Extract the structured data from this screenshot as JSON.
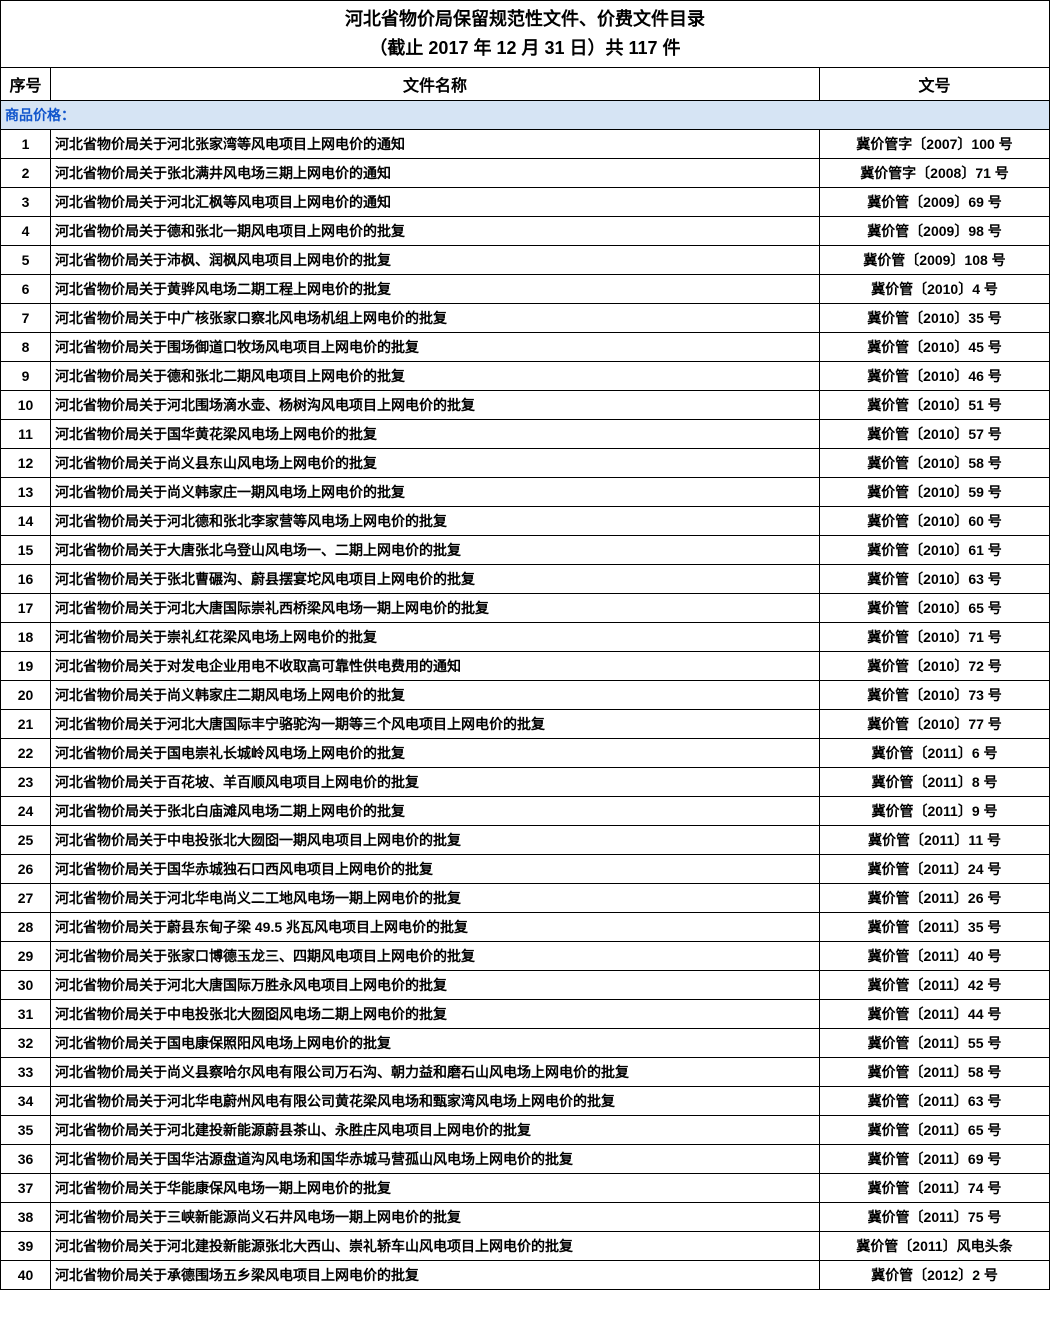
{
  "title_line1": "河北省物价局保留规范性文件、价费文件目录",
  "title_line2": "（截止 2017 年 12 月 31 日）共 117 件",
  "headers": {
    "seq": "序号",
    "name": "文件名称",
    "docno": "文号"
  },
  "section_label": "商品价格：",
  "colors": {
    "border": "#000000",
    "section_bg": "#d6e4f4",
    "section_fg": "#1155cc",
    "bg": "#ffffff",
    "text": "#000000"
  },
  "rows": [
    {
      "seq": "1",
      "name": "河北省物价局关于河北张家湾等风电项目上网电价的通知",
      "docno": "冀价管字〔2007〕100 号"
    },
    {
      "seq": "2",
      "name": "河北省物价局关于张北满井风电场三期上网电价的通知",
      "docno": "冀价管字〔2008〕71 号"
    },
    {
      "seq": "3",
      "name": "河北省物价局关于河北汇枫等风电项目上网电价的通知",
      "docno": "冀价管〔2009〕69 号"
    },
    {
      "seq": "4",
      "name": "河北省物价局关于德和张北一期风电项目上网电价的批复",
      "docno": "冀价管〔2009〕98 号"
    },
    {
      "seq": "5",
      "name": "河北省物价局关于沛枫、润枫风电项目上网电价的批复",
      "docno": "冀价管〔2009〕108 号"
    },
    {
      "seq": "6",
      "name": "河北省物价局关于黄骅风电场二期工程上网电价的批复",
      "docno": "冀价管〔2010〕4 号"
    },
    {
      "seq": "7",
      "name": "河北省物价局关于中广核张家口察北风电场机组上网电价的批复",
      "docno": "冀价管〔2010〕35 号"
    },
    {
      "seq": "8",
      "name": "河北省物价局关于围场御道口牧场风电项目上网电价的批复",
      "docno": "冀价管〔2010〕45 号"
    },
    {
      "seq": "9",
      "name": "河北省物价局关于德和张北二期风电项目上网电价的批复",
      "docno": "冀价管〔2010〕46 号"
    },
    {
      "seq": "10",
      "name": "河北省物价局关于河北围场滴水壶、杨树沟风电项目上网电价的批复",
      "docno": "冀价管〔2010〕51 号"
    },
    {
      "seq": "11",
      "name": "河北省物价局关于国华黄花梁风电场上网电价的批复",
      "docno": "冀价管〔2010〕57 号"
    },
    {
      "seq": "12",
      "name": "河北省物价局关于尚义县东山风电场上网电价的批复",
      "docno": "冀价管〔2010〕58 号"
    },
    {
      "seq": "13",
      "name": "河北省物价局关于尚义韩家庄一期风电场上网电价的批复",
      "docno": "冀价管〔2010〕59 号"
    },
    {
      "seq": "14",
      "name": "河北省物价局关于河北德和张北李家营等风电场上网电价的批复",
      "docno": "冀价管〔2010〕60 号"
    },
    {
      "seq": "15",
      "name": "河北省物价局关于大唐张北乌登山风电场一、二期上网电价的批复",
      "docno": "冀价管〔2010〕61 号"
    },
    {
      "seq": "16",
      "name": "河北省物价局关于张北曹碾沟、蔚县摆宴坨风电项目上网电价的批复",
      "docno": "冀价管〔2010〕63 号"
    },
    {
      "seq": "17",
      "name": "河北省物价局关于河北大唐国际崇礼西桥梁风电场一期上网电价的批复",
      "docno": "冀价管〔2010〕65 号"
    },
    {
      "seq": "18",
      "name": "河北省物价局关于崇礼红花梁风电场上网电价的批复",
      "docno": "冀价管〔2010〕71 号"
    },
    {
      "seq": "19",
      "name": "河北省物价局关于对发电企业用电不收取高可靠性供电费用的通知",
      "docno": "冀价管〔2010〕72 号"
    },
    {
      "seq": "20",
      "name": "河北省物价局关于尚义韩家庄二期风电场上网电价的批复",
      "docno": "冀价管〔2010〕73 号"
    },
    {
      "seq": "21",
      "name": "河北省物价局关于河北大唐国际丰宁骆驼沟一期等三个风电项目上网电价的批复",
      "docno": "冀价管〔2010〕77 号"
    },
    {
      "seq": "22",
      "name": "河北省物价局关于国电崇礼长城岭风电场上网电价的批复",
      "docno": "冀价管〔2011〕6 号"
    },
    {
      "seq": "23",
      "name": "河北省物价局关于百花坡、羊百顺风电项目上网电价的批复",
      "docno": "冀价管〔2011〕8 号"
    },
    {
      "seq": "24",
      "name": "河北省物价局关于张北白庙滩风电场二期上网电价的批复",
      "docno": "冀价管〔2011〕9 号"
    },
    {
      "seq": "25",
      "name": "河北省物价局关于中电投张北大囫囵一期风电项目上网电价的批复",
      "docno": "冀价管〔2011〕11 号"
    },
    {
      "seq": "26",
      "name": "河北省物价局关于国华赤城独石口西风电项目上网电价的批复",
      "docno": "冀价管〔2011〕24 号"
    },
    {
      "seq": "27",
      "name": "河北省物价局关于河北华电尚义二工地风电场一期上网电价的批复",
      "docno": "冀价管〔2011〕26 号"
    },
    {
      "seq": "28",
      "name": "河北省物价局关于蔚县东甸子梁 49.5 兆瓦风电项目上网电价的批复",
      "docno": "冀价管〔2011〕35 号"
    },
    {
      "seq": "29",
      "name": "河北省物价局关于张家口博德玉龙三、四期风电项目上网电价的批复",
      "docno": "冀价管〔2011〕40 号"
    },
    {
      "seq": "30",
      "name": "河北省物价局关于河北大唐国际万胜永风电项目上网电价的批复",
      "docno": "冀价管〔2011〕42 号"
    },
    {
      "seq": "31",
      "name": "河北省物价局关于中电投张北大囫囵风电场二期上网电价的批复",
      "docno": "冀价管〔2011〕44 号"
    },
    {
      "seq": "32",
      "name": "河北省物价局关于国电康保照阳风电场上网电价的批复",
      "docno": "冀价管〔2011〕55 号"
    },
    {
      "seq": "33",
      "name": "河北省物价局关于尚义县察哈尔风电有限公司万石沟、朝力益和磨石山风电场上网电价的批复",
      "docno": "冀价管〔2011〕58 号"
    },
    {
      "seq": "34",
      "name": "河北省物价局关于河北华电蔚州风电有限公司黄花梁风电场和甄家湾风电场上网电价的批复",
      "docno": "冀价管〔2011〕63 号"
    },
    {
      "seq": "35",
      "name": "河北省物价局关于河北建投新能源蔚县茶山、永胜庄风电项目上网电价的批复",
      "docno": "冀价管〔2011〕65 号"
    },
    {
      "seq": "36",
      "name": "河北省物价局关于国华沽源盘道沟风电场和国华赤城马营孤山风电场上网电价的批复",
      "docno": "冀价管〔2011〕69 号"
    },
    {
      "seq": "37",
      "name": "河北省物价局关于华能康保风电场一期上网电价的批复",
      "docno": "冀价管〔2011〕74 号"
    },
    {
      "seq": "38",
      "name": "河北省物价局关于三峡新能源尚义石井风电场一期上网电价的批复",
      "docno": "冀价管〔2011〕75 号"
    },
    {
      "seq": "39",
      "name": "河北省物价局关于河北建投新能源张北大西山、崇礼轿车山风电项目上网电价的批复",
      "docno": "冀价管〔2011〕风电头条"
    },
    {
      "seq": "40",
      "name": "河北省物价局关于承德围场五乡梁风电项目上网电价的批复",
      "docno": "冀价管〔2012〕2 号"
    }
  ]
}
